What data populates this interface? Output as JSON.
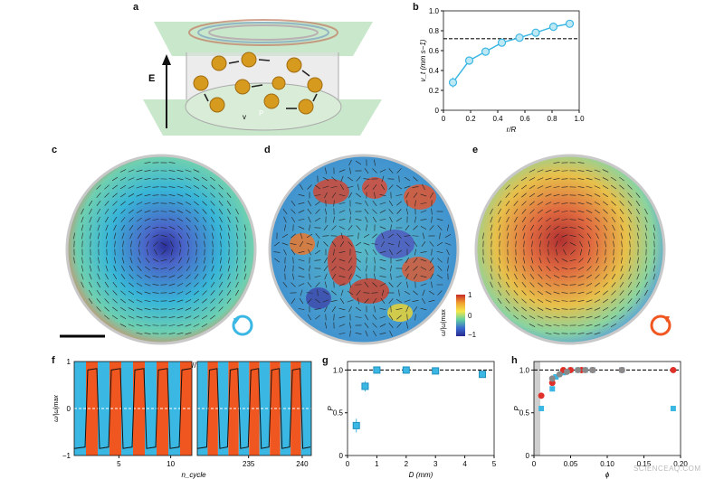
{
  "panel_labels": {
    "a": "a",
    "b": "b",
    "c": "c",
    "d": "d",
    "e": "e",
    "f": "f",
    "g": "g",
    "h": "h"
  },
  "panel_a": {
    "field_label": "E",
    "velocity_label": "v",
    "polarization_label": "P"
  },
  "colorbar": {
    "label": "ω/|ω|max",
    "ticks": [
      "1",
      "0",
      "−1"
    ]
  },
  "watermark": "SCIENCEAQ.COM",
  "colors": {
    "cyan": "#3bb7e4",
    "orange": "#f0561f",
    "red": "#e0302a",
    "grey": "#8a8a8a"
  },
  "chart_data": [
    {
      "id": "b",
      "type": "line",
      "xlabel": "r/R",
      "ylabel": "v_t (mm s−1)",
      "xlim": [
        0,
        1
      ],
      "ylim": [
        0,
        1
      ],
      "xticks": [
        "0",
        "0.2",
        "0.4",
        "0.6",
        "0.8",
        "1.0"
      ],
      "yticks": [
        "0",
        "0.2",
        "0.4",
        "0.6",
        "0.8",
        "1.0"
      ],
      "x": [
        0.07,
        0.19,
        0.31,
        0.43,
        0.56,
        0.68,
        0.81,
        0.93
      ],
      "y": [
        0.28,
        0.5,
        0.59,
        0.68,
        0.73,
        0.78,
        0.84,
        0.87
      ],
      "err": [
        0.05,
        0.03,
        0.02,
        0.02,
        0.02,
        0.02,
        0.02,
        0.02
      ],
      "reference_line": 0.72
    },
    {
      "id": "f",
      "type": "line",
      "ylabel": "ω/|ω|max",
      "xlabel": "n_cycle",
      "ylim": [
        -1,
        1
      ],
      "yticks": [
        "1",
        "0",
        "−1"
      ],
      "xticks_left": [
        "5",
        "10"
      ],
      "xticks_right": [
        "235",
        "240"
      ],
      "bands_left": [
        "cyan",
        "orange",
        "cyan",
        "orange",
        "cyan",
        "orange",
        "cyan",
        "orange",
        "cyan",
        "orange"
      ],
      "bands_right": [
        "cyan",
        "orange",
        "cyan",
        "orange",
        "cyan",
        "orange",
        "cyan",
        "orange",
        "cyan",
        "orange",
        "cyan"
      ]
    },
    {
      "id": "g",
      "type": "scatter",
      "xlabel": "D (mm)",
      "ylabel": "P",
      "xlim": [
        0,
        5
      ],
      "ylim": [
        0,
        1.1
      ],
      "xticks": [
        "0",
        "1",
        "2",
        "3",
        "4",
        "5"
      ],
      "yticks": [
        "0",
        "0.5",
        "1.0"
      ],
      "x": [
        0.3,
        0.6,
        1.0,
        2.0,
        3.0,
        4.6
      ],
      "y": [
        0.35,
        0.81,
        1.0,
        1.0,
        0.99,
        0.95
      ],
      "err": [
        0.08,
        0.06,
        0.02,
        0.02,
        0.02,
        0.03
      ],
      "reference_line": 1.0
    },
    {
      "id": "h",
      "type": "scatter",
      "xlabel": "ϕ",
      "ylabel": "P",
      "xlim": [
        0,
        0.2
      ],
      "ylim": [
        0,
        1.1
      ],
      "xticks": [
        "0",
        "0.05",
        "0.10",
        "0.15",
        "0.20"
      ],
      "yticks": [
        "0",
        "0.5",
        "1.0"
      ],
      "series": [
        {
          "color": "cyan",
          "x": [
            0.01,
            0.025,
            0.03,
            0.04,
            0.05,
            0.06,
            0.07,
            0.08,
            0.12,
            0.19
          ],
          "y": [
            0.55,
            0.78,
            0.92,
            0.97,
            1.0,
            1.0,
            1.0,
            1.0,
            1.0,
            0.55
          ]
        },
        {
          "color": "red",
          "x": [
            0.01,
            0.025,
            0.04,
            0.05,
            0.065,
            0.08,
            0.12,
            0.19
          ],
          "y": [
            0.7,
            0.85,
            1.0,
            1.0,
            1.0,
            1.0,
            1.0,
            1.0
          ]
        },
        {
          "color": "grey",
          "x": [
            0.025,
            0.035,
            0.045,
            0.06,
            0.07,
            0.08,
            0.12
          ],
          "y": [
            0.9,
            0.95,
            0.98,
            1.0,
            1.0,
            1.0,
            1.0
          ]
        }
      ],
      "reference_line": 1.0
    }
  ]
}
